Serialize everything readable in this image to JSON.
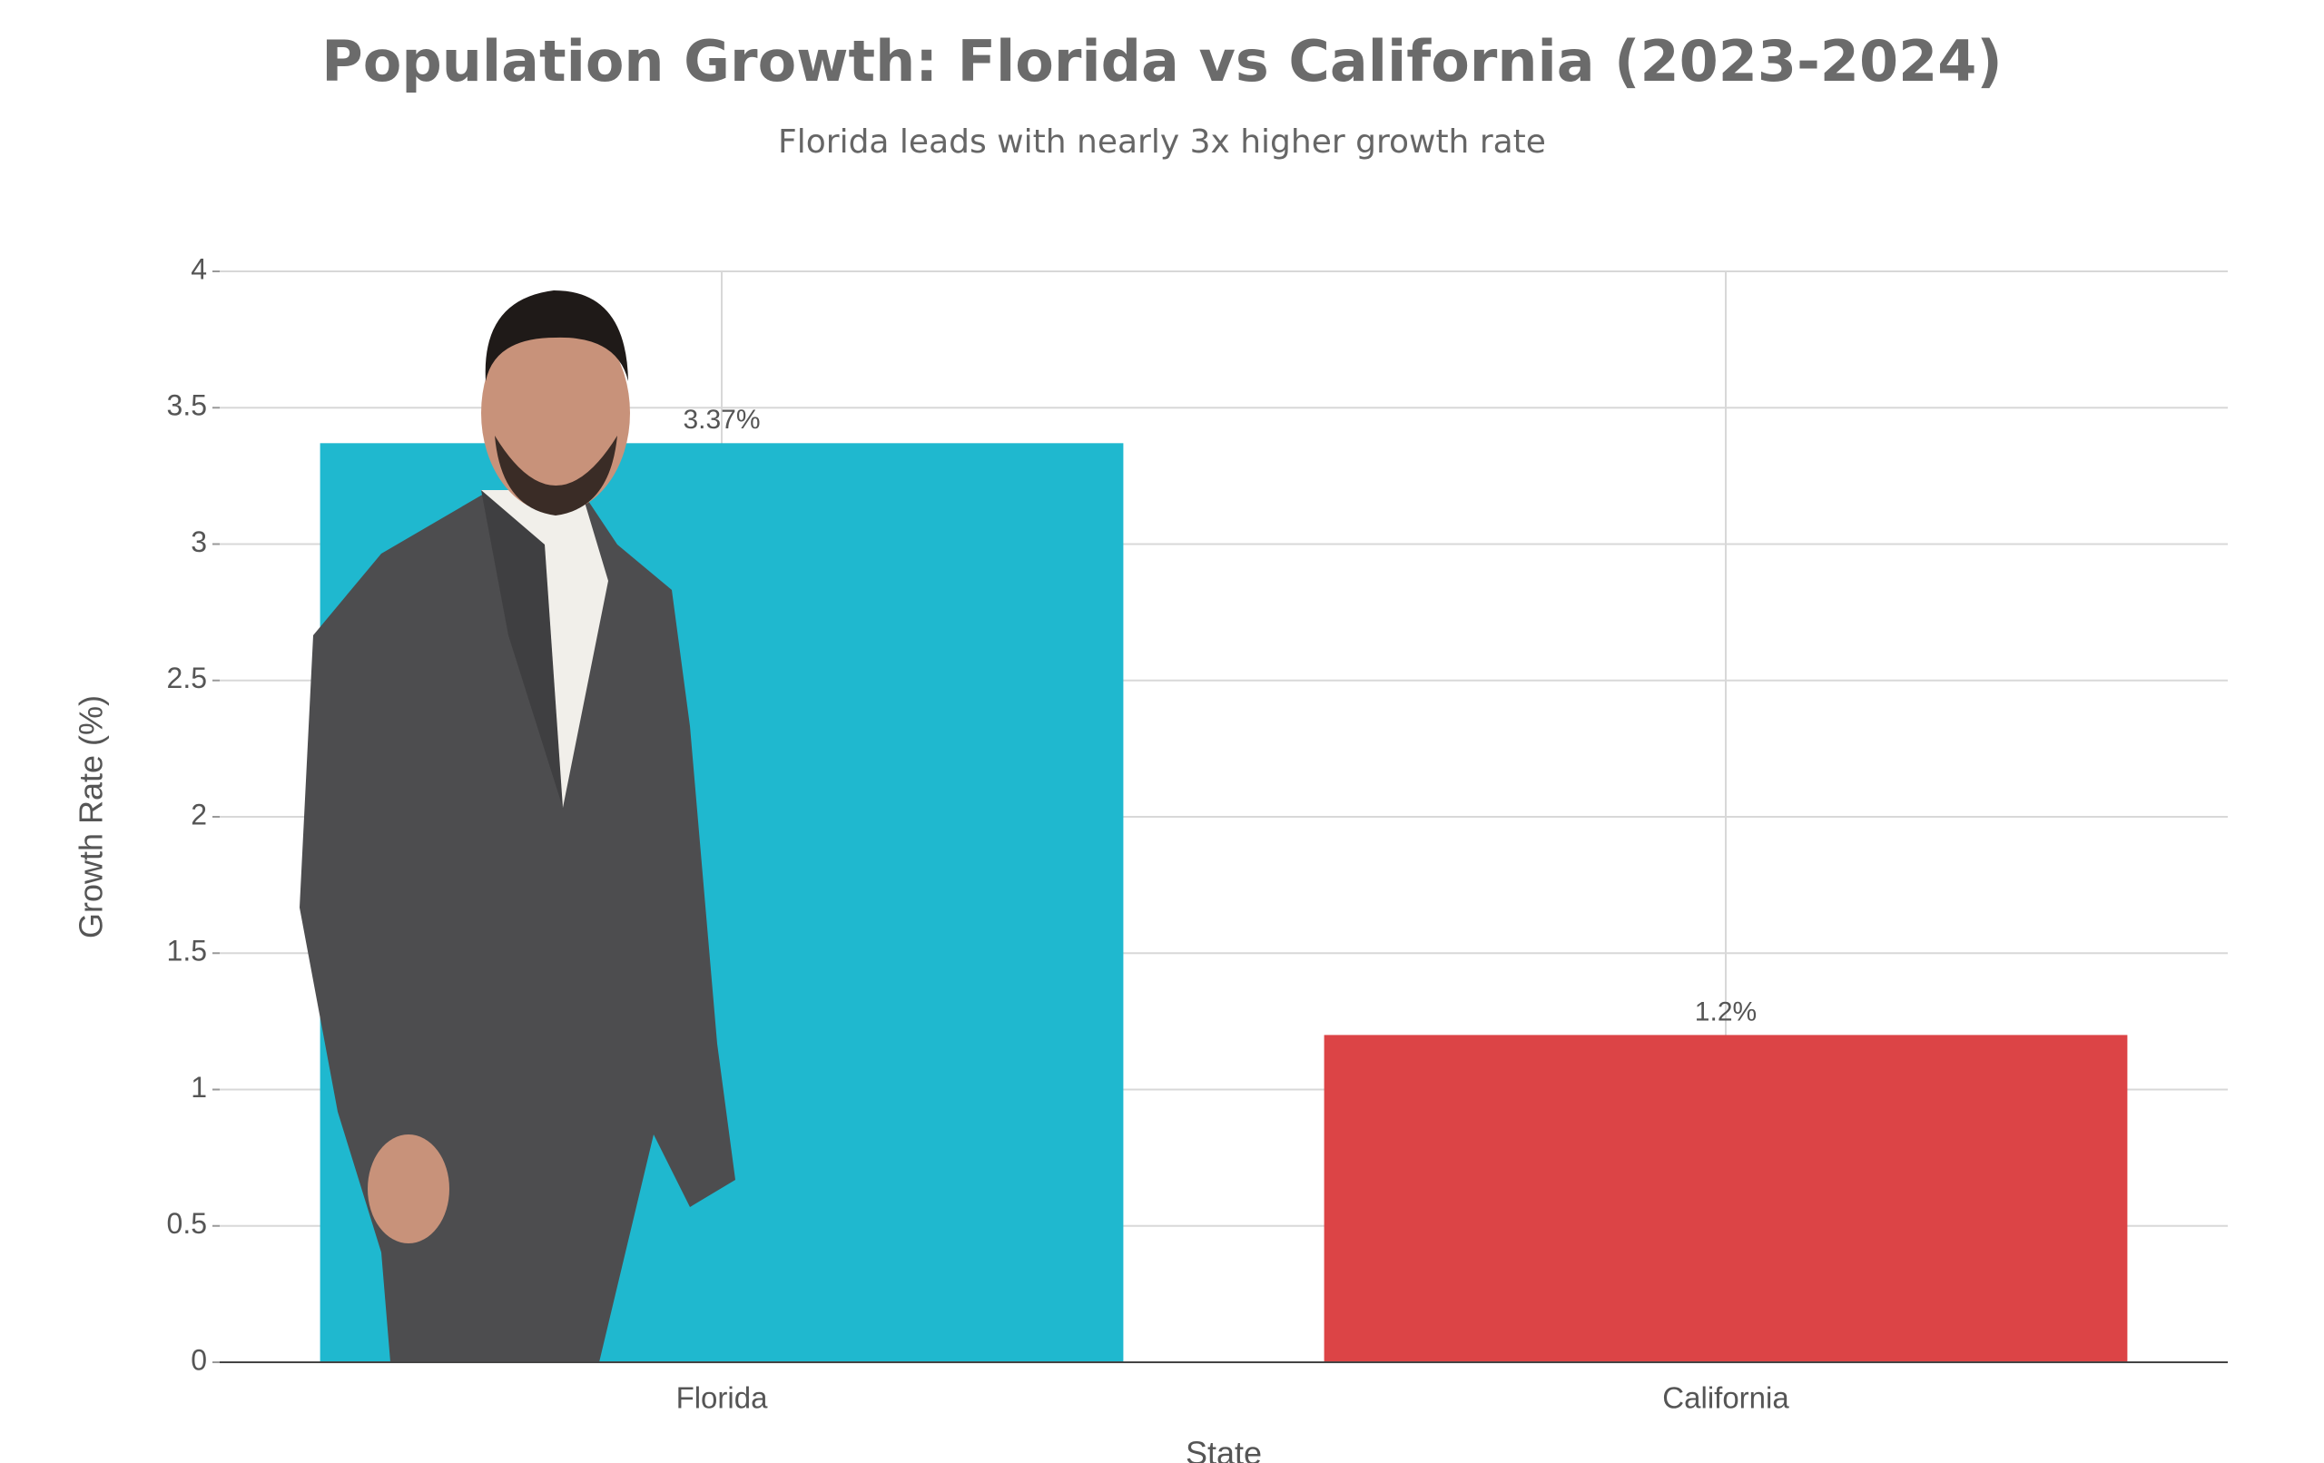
{
  "chart_data": {
    "type": "bar",
    "title": "Population Growth: Florida vs California (2023-2024)",
    "subtitle": "Florida leads with nearly 3x higher growth rate",
    "x_label": "State",
    "y_label": "Growth Rate (%)",
    "categories": [
      "Florida",
      "California"
    ],
    "values": [
      3.37,
      1.2
    ],
    "value_labels": [
      "3.37%",
      "1.2%"
    ],
    "colors": [
      "#1fb8cf",
      "#dc4446"
    ],
    "ylim": [
      0,
      4
    ],
    "yticks": [
      0,
      0.5,
      1,
      1.5,
      2,
      2.5,
      3,
      3.5,
      4
    ],
    "grid": true
  }
}
